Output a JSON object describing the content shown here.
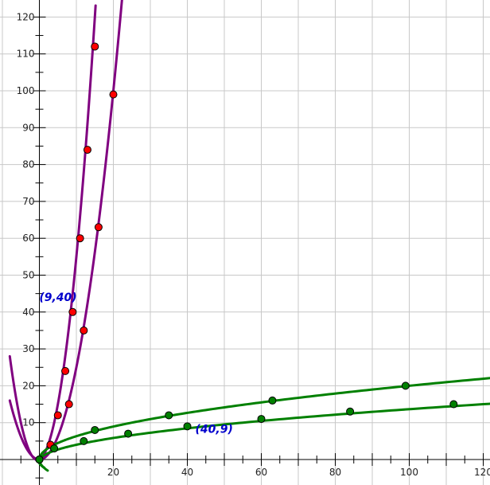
{
  "chart_data": {
    "type": "scatter",
    "title": "",
    "xlabel": "",
    "ylabel": "",
    "xlim": [
      -9,
      121
    ],
    "ylim": [
      -2,
      122
    ],
    "grid": true,
    "x_ticks": [
      20,
      40,
      60,
      80,
      100,
      120
    ],
    "x_tick_labels": [
      "20",
      "40",
      "60",
      "80",
      "100",
      "120"
    ],
    "y_ticks": [
      10,
      20,
      30,
      40,
      50,
      60,
      70,
      80,
      90,
      100,
      110,
      120
    ],
    "y_tick_labels": [
      "10",
      "20",
      "30",
      "40",
      "50",
      "60",
      "70",
      "80",
      "90",
      "100",
      "110",
      "120"
    ],
    "colors": {
      "purple_curve": "#800080",
      "green_curve": "#008000",
      "red_point": "#ff0000",
      "green_point": "#008000",
      "grid": "#c8c8c8",
      "axis": "#000000",
      "annotation": "#0000cc"
    },
    "series": [
      {
        "curve": "purple_steep",
        "points": [
          [
            0,
            0
          ],
          [
            3,
            4
          ],
          [
            5,
            12
          ],
          [
            7,
            24
          ],
          [
            9,
            40
          ],
          [
            11,
            60
          ],
          [
            13,
            84
          ],
          [
            15,
            112
          ]
        ]
      },
      {
        "curve": "purple_wide",
        "points": [
          [
            0,
            0
          ],
          [
            3,
            4
          ],
          [
            8,
            15
          ],
          [
            12,
            35
          ],
          [
            16,
            63
          ],
          [
            20,
            99
          ]
        ]
      },
      {
        "curve": "green_steep",
        "points": [
          [
            0,
            0
          ],
          [
            4,
            3
          ],
          [
            12,
            5
          ],
          [
            24,
            7
          ],
          [
            40,
            9
          ],
          [
            60,
            11
          ],
          [
            84,
            13
          ],
          [
            112,
            15
          ]
        ]
      },
      {
        "curve": "green_wide",
        "points": [
          [
            0,
            0
          ],
          [
            4,
            3
          ],
          [
            15,
            8
          ],
          [
            35,
            12
          ],
          [
            63,
            16
          ],
          [
            99,
            20
          ]
        ]
      }
    ],
    "annotations": [
      {
        "text": "(9,40)",
        "x": 9,
        "y": 40
      },
      {
        "text": "(40,9)",
        "x": 40,
        "y": 9
      }
    ]
  }
}
